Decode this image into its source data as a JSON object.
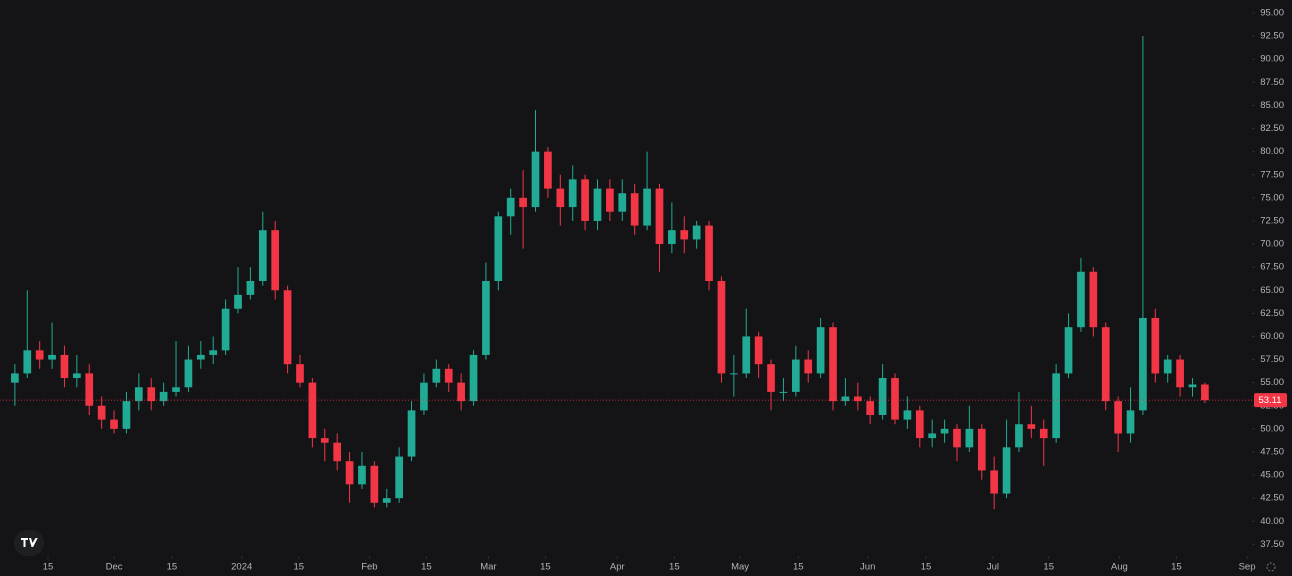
{
  "chart_data": {
    "type": "candlestick",
    "up_color": "#22ab94",
    "down_color": "#f23645",
    "last_price": 53.11,
    "open": [
      55,
      56,
      58.5,
      57.5,
      58,
      55.5,
      56,
      52.5,
      51,
      50,
      53,
      54.5,
      53,
      54,
      54.5,
      57.5,
      58,
      58.5,
      63,
      64.5,
      66,
      71.5,
      65,
      57,
      55,
      49,
      48.5,
      46.5,
      44,
      46,
      42,
      42.5,
      47,
      52,
      55,
      56.5,
      55,
      53,
      58,
      66,
      73,
      75,
      74,
      80,
      76,
      74,
      77,
      72.5,
      76,
      73.5,
      75.5,
      72,
      76,
      70,
      71.5,
      70.5,
      72,
      66,
      56,
      56,
      60,
      57,
      54,
      54,
      57.5,
      56,
      61,
      53,
      53.5,
      53,
      51.5,
      55.5,
      51,
      52,
      49,
      49.5,
      50,
      48,
      50,
      45.5,
      43,
      48,
      50.5,
      50,
      49,
      56,
      61,
      67,
      61,
      53,
      49.5,
      52,
      62,
      56,
      57.5,
      54.5,
      54.8
    ],
    "high": [
      57,
      65,
      59.5,
      61.5,
      59,
      58,
      57,
      53.5,
      52,
      54,
      56,
      55.5,
      55,
      59.5,
      59,
      59.5,
      60,
      64,
      67.5,
      67.5,
      73.5,
      72.5,
      65.5,
      58,
      55.5,
      50,
      49.5,
      47.5,
      47.5,
      46.5,
      43.5,
      48,
      53,
      56,
      57.5,
      57,
      56,
      58.5,
      68,
      73.5,
      76,
      78,
      84.5,
      80.5,
      77.5,
      78.5,
      77.5,
      77,
      77,
      77,
      76.5,
      80,
      76.5,
      74.5,
      73,
      72.5,
      72.5,
      66.5,
      58,
      63,
      60.5,
      57.5,
      55.5,
      59,
      58.5,
      62,
      61.5,
      55.5,
      55,
      53.5,
      57,
      56,
      53.5,
      52.5,
      51,
      51,
      50.5,
      52.5,
      50.5,
      47,
      51,
      54,
      52.5,
      51,
      57,
      62.5,
      68.5,
      67.5,
      61.5,
      53.5,
      54.5,
      92.5,
      63,
      58,
      58,
      55.5,
      55
    ],
    "low": [
      52.5,
      55.5,
      56.5,
      56.5,
      54.5,
      54.5,
      51.5,
      50,
      49.5,
      49.5,
      52,
      52,
      52.5,
      53.5,
      54,
      56.5,
      57,
      58,
      62.5,
      64,
      65.5,
      64,
      56,
      54.5,
      48,
      46.5,
      45.5,
      42,
      43.5,
      41.5,
      41.5,
      42,
      46.5,
      51.5,
      54.5,
      54,
      52,
      52.5,
      57.5,
      65,
      71,
      69.5,
      73.5,
      75,
      72,
      72.5,
      71.5,
      71.5,
      72.5,
      72.5,
      71,
      71.5,
      67,
      69,
      69,
      69.5,
      65,
      55,
      53.5,
      55.5,
      55.5,
      52,
      53,
      53.5,
      55,
      55.5,
      52,
      52.5,
      52,
      50.5,
      51,
      50.5,
      50,
      48,
      48,
      48.5,
      46.5,
      47.5,
      44.5,
      41.3,
      42.5,
      47.5,
      49,
      46,
      48.5,
      55.5,
      60.5,
      60,
      52,
      47.5,
      48.5,
      51.5,
      55,
      55,
      53.5,
      53.5,
      52.8
    ],
    "close": [
      56,
      58.5,
      57.5,
      58,
      55.5,
      56,
      52.5,
      51,
      50,
      53,
      54.5,
      53,
      54,
      54.5,
      57.5,
      58,
      58.5,
      63,
      64.5,
      66,
      71.5,
      65,
      57,
      55,
      49,
      48.5,
      46.5,
      44,
      46,
      42,
      42.5,
      47,
      52,
      55,
      56.5,
      55,
      53,
      58,
      66,
      73,
      75,
      74,
      80,
      76,
      74,
      77,
      72.5,
      76,
      73.5,
      75.5,
      72,
      76,
      70,
      71.5,
      70.5,
      72,
      66,
      56,
      56,
      60,
      57,
      54,
      54,
      57.5,
      56,
      61,
      53,
      53.5,
      53,
      51.5,
      55.5,
      51,
      52,
      49,
      49.5,
      50,
      48,
      50,
      45.5,
      43,
      48,
      50.5,
      50,
      49,
      56,
      61,
      67,
      61,
      53,
      49.5,
      52,
      62,
      56,
      57.5,
      54.5,
      54.8,
      53.11
    ],
    "xlim": [
      -1.2,
      99.8
    ],
    "xticks": [
      {
        "value": 2.67,
        "label": "15"
      },
      {
        "value": 8.0,
        "label": "Dec"
      },
      {
        "value": 12.67,
        "label": "15"
      },
      {
        "value": 18.3,
        "label": "2024"
      },
      {
        "value": 22.9,
        "label": "15"
      },
      {
        "value": 28.6,
        "label": "Feb"
      },
      {
        "value": 33.2,
        "label": "15"
      },
      {
        "value": 38.2,
        "label": "Mar"
      },
      {
        "value": 42.8,
        "label": "15"
      },
      {
        "value": 48.6,
        "label": "Apr"
      },
      {
        "value": 53.2,
        "label": "15"
      },
      {
        "value": 58.5,
        "label": "May"
      },
      {
        "value": 63.2,
        "label": "15"
      },
      {
        "value": 68.8,
        "label": "Jun"
      },
      {
        "value": 73.5,
        "label": "15"
      },
      {
        "value": 78.9,
        "label": "Jul"
      },
      {
        "value": 83.4,
        "label": "15"
      },
      {
        "value": 89.1,
        "label": "Aug"
      },
      {
        "value": 93.7,
        "label": "15"
      },
      {
        "value": 99.4,
        "label": "Sep"
      }
    ],
    "ylim": [
      36.24,
      96.41
    ],
    "yticks": [
      {
        "value": 37.5,
        "label": "37.50"
      },
      {
        "value": 40,
        "label": "40.00"
      },
      {
        "value": 42.5,
        "label": "42.50"
      },
      {
        "value": 45,
        "label": "45.00"
      },
      {
        "value": 47.5,
        "label": "47.50"
      },
      {
        "value": 50,
        "label": "50.00"
      },
      {
        "value": 52.5,
        "label": "52.50"
      },
      {
        "value": 55,
        "label": "55.00"
      },
      {
        "value": 57.5,
        "label": "57.50"
      },
      {
        "value": 60,
        "label": "60.00"
      },
      {
        "value": 62.5,
        "label": "62.50"
      },
      {
        "value": 65,
        "label": "65.00"
      },
      {
        "value": 67.5,
        "label": "67.50"
      },
      {
        "value": 70,
        "label": "70.00"
      },
      {
        "value": 72.5,
        "label": "72.50"
      },
      {
        "value": 75,
        "label": "75.00"
      },
      {
        "value": 77.5,
        "label": "77.50"
      },
      {
        "value": 80,
        "label": "80.00"
      },
      {
        "value": 82.5,
        "label": "82.50"
      },
      {
        "value": 85,
        "label": "85.00"
      },
      {
        "value": 87.5,
        "label": "87.50"
      },
      {
        "value": 90,
        "label": "90.00"
      },
      {
        "value": 92.5,
        "label": "92.50"
      },
      {
        "value": 95,
        "label": "95.00"
      }
    ]
  }
}
